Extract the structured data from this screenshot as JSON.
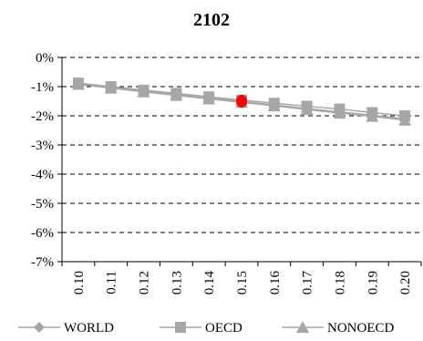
{
  "chart_data": {
    "type": "line",
    "title": "2102",
    "xlabel": "",
    "ylabel": "",
    "x": [
      "0.10",
      "0.11",
      "0.12",
      "0.13",
      "0.14",
      "0.15",
      "0.16",
      "0.17",
      "0.18",
      "0.19",
      "0.20"
    ],
    "ylim": [
      -7,
      0
    ],
    "yticks": [
      0,
      -1,
      -2,
      -3,
      -4,
      -5,
      -6,
      -7
    ],
    "ytick_labels": [
      "0%",
      "-1%",
      "-2%",
      "-3%",
      "-4%",
      "-5%",
      "-6%",
      "-7%"
    ],
    "grid": "horizontal-dashed",
    "legend_position": "bottom",
    "series": [
      {
        "name": "WORLD",
        "marker": "diamond",
        "color": "#a6a6a6",
        "values": [
          -0.9,
          -1.03,
          -1.16,
          -1.27,
          -1.39,
          -1.51,
          -1.63,
          -1.75,
          -1.87,
          -1.98,
          -2.1
        ]
      },
      {
        "name": "OECD",
        "marker": "square",
        "color": "#a6a6a6",
        "values": [
          -0.88,
          -1.0,
          -1.12,
          -1.23,
          -1.35,
          -1.46,
          -1.57,
          -1.67,
          -1.77,
          -1.89,
          -2.0
        ]
      },
      {
        "name": "NONOECD",
        "marker": "triangle",
        "color": "#a6a6a6",
        "values": [
          -0.92,
          -1.05,
          -1.18,
          -1.3,
          -1.42,
          -1.54,
          -1.66,
          -1.78,
          -1.91,
          -2.02,
          -2.15
        ]
      }
    ],
    "highlight": {
      "x": "0.15",
      "y": -1.5,
      "color": "#ff0000"
    }
  }
}
